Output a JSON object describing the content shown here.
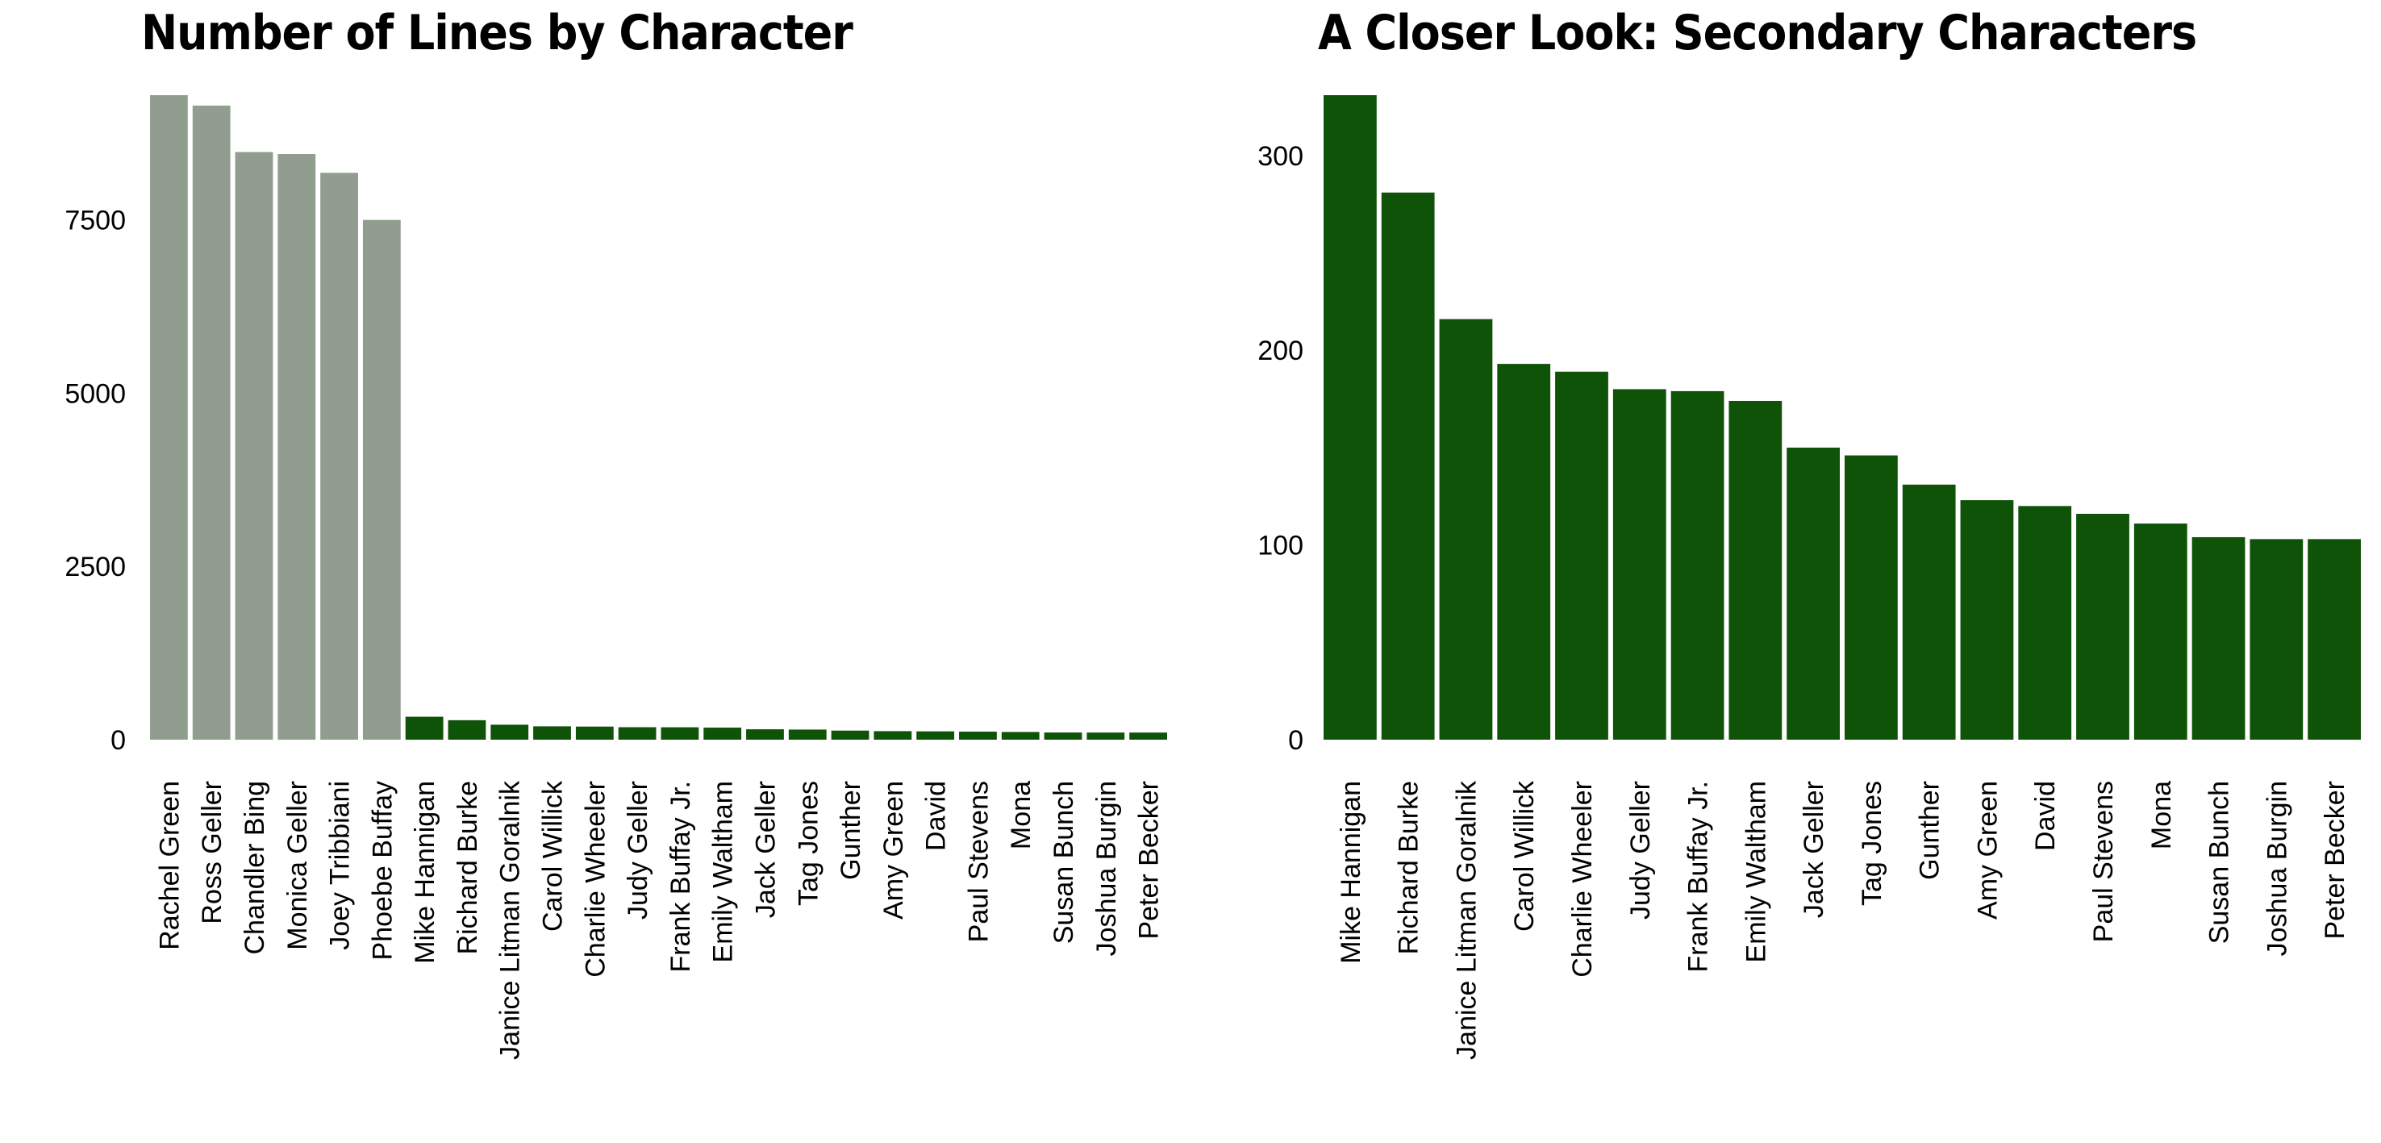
{
  "chart_data": [
    {
      "type": "bar",
      "title": "Number of Lines by Character",
      "xlabel": "",
      "ylabel": "",
      "ylim": [
        0,
        9300
      ],
      "yticks": [
        0,
        2500,
        5000,
        7500
      ],
      "grid": false,
      "categories": [
        "Rachel Green",
        "Ross Geller",
        "Chandler Bing",
        "Monica Geller",
        "Joey Tribbiani",
        "Phoebe Buffay",
        "Mike Hannigan",
        "Richard Burke",
        "Janice Litman Goralnik",
        "Carol Willick",
        "Charlie Wheeler",
        "Judy Geller",
        "Frank Buffay Jr.",
        "Emily Waltham",
        "Jack Geller",
        "Tag Jones",
        "Gunther",
        "Amy Green",
        "David",
        "Paul Stevens",
        "Mona",
        "Susan Bunch",
        "Joshua Burgin",
        "Peter Becker"
      ],
      "values": [
        9300,
        9150,
        8480,
        8450,
        8180,
        7500,
        331,
        281,
        216,
        193,
        189,
        180,
        179,
        174,
        150,
        146,
        131,
        123,
        120,
        116,
        111,
        104,
        103,
        103
      ],
      "colors": [
        "#919e8f",
        "#919e8f",
        "#919e8f",
        "#919e8f",
        "#919e8f",
        "#919e8f",
        "#0e5308",
        "#0e5308",
        "#0e5308",
        "#0e5308",
        "#0e5308",
        "#0e5308",
        "#0e5308",
        "#0e5308",
        "#0e5308",
        "#0e5308",
        "#0e5308",
        "#0e5308",
        "#0e5308",
        "#0e5308",
        "#0e5308",
        "#0e5308",
        "#0e5308",
        "#0e5308"
      ]
    },
    {
      "type": "bar",
      "title": "A Closer Look: Secondary Characters",
      "xlabel": "",
      "ylabel": "",
      "ylim": [
        0,
        331
      ],
      "yticks": [
        0,
        100,
        200,
        300
      ],
      "grid": false,
      "categories": [
        "Mike Hannigan",
        "Richard Burke",
        "Janice Litman Goralnik",
        "Carol Willick",
        "Charlie Wheeler",
        "Judy Geller",
        "Frank Buffay Jr.",
        "Emily Waltham",
        "Jack Geller",
        "Tag Jones",
        "Gunther",
        "Amy Green",
        "David",
        "Paul Stevens",
        "Mona",
        "Susan Bunch",
        "Joshua Burgin",
        "Peter Becker"
      ],
      "values": [
        331,
        281,
        216,
        193,
        189,
        180,
        179,
        174,
        150,
        146,
        131,
        123,
        120,
        116,
        111,
        104,
        103,
        103
      ],
      "colors": [
        "#0e5308"
      ]
    }
  ]
}
